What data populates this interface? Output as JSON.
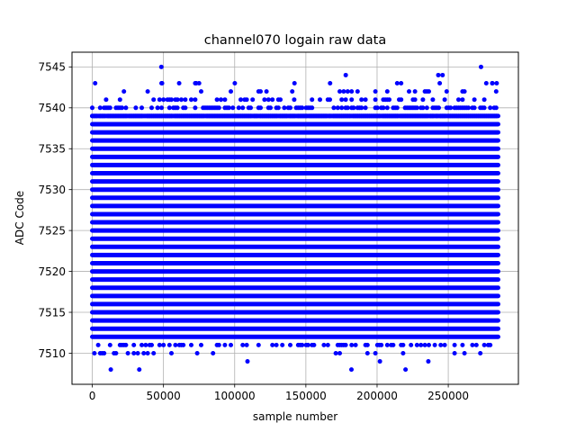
{
  "chart_data": {
    "type": "scatter",
    "title": "channel070 logain raw data",
    "xlabel": "sample number",
    "ylabel": "ADC Code",
    "xlim": [
      -14250,
      299250
    ],
    "ylim": [
      7506.2,
      7546.8
    ],
    "xticks": [
      0,
      50000,
      100000,
      150000,
      200000,
      250000
    ],
    "xtick_labels": [
      "0",
      "50000",
      "100000",
      "150000",
      "200000",
      "250000"
    ],
    "yticks": [
      7510,
      7515,
      7520,
      7525,
      7530,
      7535,
      7540,
      7545
    ],
    "ytick_labels": [
      "7510",
      "7515",
      "7520",
      "7525",
      "7530",
      "7535",
      "7540",
      "7545"
    ],
    "grid": true,
    "marker_color": "#0000ff",
    "series": [
      {
        "x_range": [
          0,
          285000
        ],
        "dense_band": [
          7512,
          7539
        ],
        "levels": [
          {
            "y": 7539,
            "fill": 0.85
          },
          {
            "y": 7540,
            "fill": 0.55
          },
          {
            "y": 7541,
            "fill": 0.3
          },
          {
            "y": 7542,
            "fill": 0.08
          },
          {
            "y": 7543,
            "fill": 0.03
          },
          {
            "y": 7511,
            "fill": 0.35
          },
          {
            "y": 7510,
            "fill": 0.08
          }
        ],
        "outliers": [
          {
            "x": 1500,
            "y": 7510
          },
          {
            "x": 2000,
            "y": 7543
          },
          {
            "x": 13000,
            "y": 7508
          },
          {
            "x": 33000,
            "y": 7508
          },
          {
            "x": 48500,
            "y": 7545
          },
          {
            "x": 49000,
            "y": 7543
          },
          {
            "x": 61000,
            "y": 7543
          },
          {
            "x": 73000,
            "y": 7543
          },
          {
            "x": 75000,
            "y": 7543
          },
          {
            "x": 109000,
            "y": 7509
          },
          {
            "x": 142000,
            "y": 7543
          },
          {
            "x": 167000,
            "y": 7543
          },
          {
            "x": 178000,
            "y": 7544
          },
          {
            "x": 182000,
            "y": 7508
          },
          {
            "x": 202000,
            "y": 7509
          },
          {
            "x": 220000,
            "y": 7508
          },
          {
            "x": 236000,
            "y": 7509
          },
          {
            "x": 243000,
            "y": 7544
          },
          {
            "x": 246000,
            "y": 7544
          },
          {
            "x": 244000,
            "y": 7543
          },
          {
            "x": 273000,
            "y": 7545
          },
          {
            "x": 281000,
            "y": 7543
          },
          {
            "x": 284000,
            "y": 7543
          }
        ]
      }
    ]
  }
}
